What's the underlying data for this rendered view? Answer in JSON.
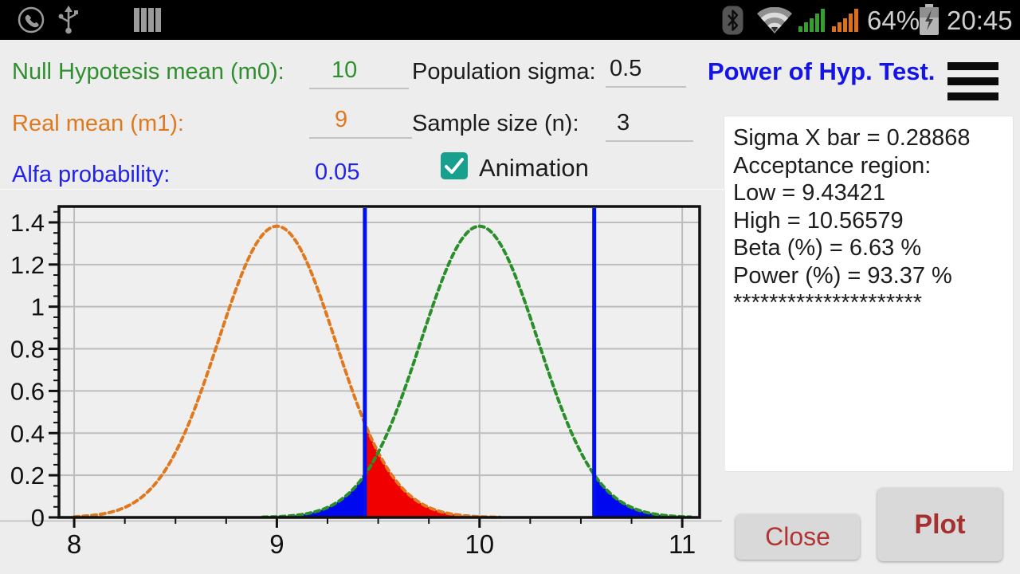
{
  "status_bar": {
    "time": "20:45",
    "battery_percent": "64%",
    "icons": [
      "phone-icon",
      "usb-icon",
      "sim-bars-icon",
      "bluetooth-icon",
      "wifi-icon",
      "signal-green-icon",
      "signal-orange-icon",
      "battery-charging-icon"
    ]
  },
  "form": {
    "m0": {
      "label": "Null Hypotesis mean (m0):",
      "value": "10",
      "color": "#2f8f2f"
    },
    "m1": {
      "label": "Real mean (m1):",
      "value": "9",
      "color": "#e0791e"
    },
    "alfa": {
      "label": "Alfa probability:",
      "value": "0.05",
      "color": "#2222ee"
    },
    "sigma": {
      "label": "Population sigma:",
      "value": "0.5",
      "color": "#1c1c1c"
    },
    "n": {
      "label": "Sample size (n):",
      "value": "3",
      "color": "#1c1c1c"
    },
    "animation": {
      "label": "Animation",
      "checked": true,
      "checkbox_color": "#17a08d"
    }
  },
  "header": {
    "title": "Power of Hyp. Test.",
    "title_color": "#1414e6"
  },
  "results": {
    "lines": [
      "Sigma X bar = 0.28868",
      "Acceptance region:",
      "Low = 9.43421",
      "High = 10.56579",
      "Beta (%) = 6.63 %",
      "Power (%) = 93.37 %",
      "*********************"
    ]
  },
  "buttons": {
    "close_label": "Close",
    "plot_label": "Plot",
    "text_color": "#b23535"
  },
  "chart_data": {
    "type": "line",
    "title": "",
    "xlabel": "",
    "ylabel": "",
    "xlim": [
      7.925,
      11.086
    ],
    "ylim": [
      0,
      1.4755
    ],
    "x_ticks": [
      8,
      9,
      10,
      11
    ],
    "x_minor_step": 0.25,
    "y_ticks": [
      0,
      0.2,
      0.4,
      0.6,
      0.8,
      1,
      1.2,
      1.4
    ],
    "y_minor_step": 0.05,
    "grid": true,
    "legend": "none",
    "series": [
      {
        "name": "real-mean-distribution",
        "kind": "normal-pdf",
        "mean": 9,
        "sigma": 0.28868,
        "peak": 1.382,
        "color": "#e0791e",
        "range": [
          8.0,
          10.1
        ],
        "style": "dashed"
      },
      {
        "name": "null-hypothesis-distribution",
        "kind": "normal-pdf",
        "mean": 10,
        "sigma": 0.28868,
        "peak": 1.382,
        "color": "#2a8f2a",
        "range": [
          8.93,
          11.05
        ],
        "style": "dashed"
      }
    ],
    "cutoff_lines": {
      "low": 9.43421,
      "high": 10.56579,
      "color": "#0010ee"
    },
    "regions": [
      {
        "name": "alpha-region-low",
        "under": 1,
        "from": 8.9,
        "to": 9.43421,
        "fill": "#0008f0"
      },
      {
        "name": "beta-region",
        "under": 0,
        "from": 9.43421,
        "to": 10.1,
        "fill": "#f00000"
      },
      {
        "name": "alpha-region-high",
        "under": 1,
        "from": 10.56579,
        "to": 11.05,
        "fill": "#0008f0"
      }
    ]
  }
}
